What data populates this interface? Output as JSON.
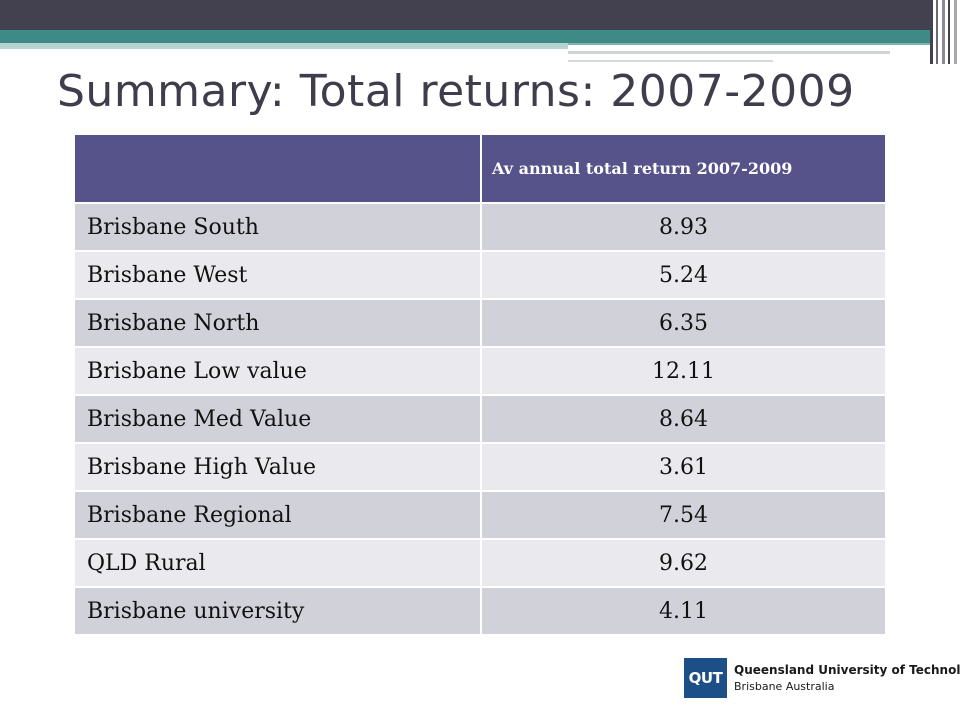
{
  "slide": {
    "title": "Summary: Total returns: 2007-2009"
  },
  "table": {
    "header": [
      "",
      "Av annual total return 2007-2009"
    ],
    "rows": [
      {
        "name": "Brisbane South",
        "value": "8.93"
      },
      {
        "name": "Brisbane West",
        "value": "5.24"
      },
      {
        "name": "Brisbane North",
        "value": "6.35"
      },
      {
        "name": "Brisbane Low value",
        "value": "12.11"
      },
      {
        "name": "Brisbane Med Value",
        "value": "8.64"
      },
      {
        "name": "Brisbane High Value",
        "value": "3.61"
      },
      {
        "name": "Brisbane Regional",
        "value": "7.54"
      },
      {
        "name": "QLD Rural",
        "value": "9.62"
      },
      {
        "name": "Brisbane university",
        "value": "4.11"
      }
    ]
  },
  "logo": {
    "mark": "QUT",
    "name": "Queensland University of Technology",
    "sub": "Brisbane Australia"
  },
  "colors": {
    "header_bg": "#55538a",
    "row_odd": "#d1d1d9",
    "row_even": "#eaeaee",
    "band_dark": "#43414f",
    "band_teal": "#3e8a87",
    "logo_blue": "#1c4f88"
  }
}
